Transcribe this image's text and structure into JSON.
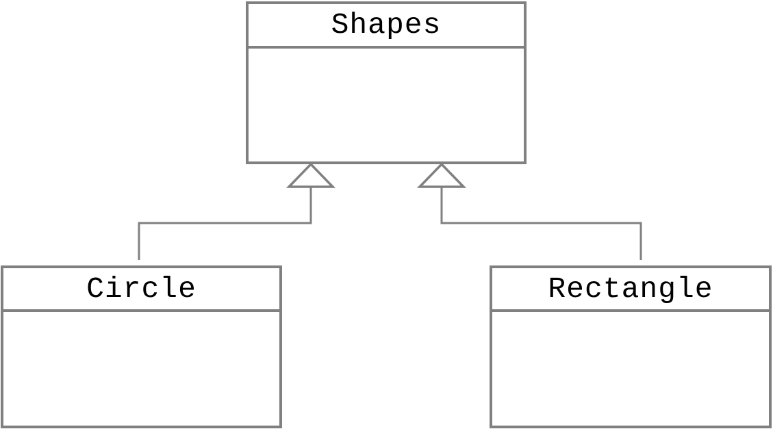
{
  "diagram": {
    "colors": {
      "stroke": "#808080",
      "text": "#000000",
      "background": "#ffffff"
    },
    "classes": {
      "parent": {
        "name": "Shapes"
      },
      "left_child": {
        "name": "Circle"
      },
      "right_child": {
        "name": "Rectangle"
      }
    },
    "relationships": [
      {
        "type": "inheritance",
        "from": "Circle",
        "to": "Shapes"
      },
      {
        "type": "inheritance",
        "from": "Rectangle",
        "to": "Shapes"
      }
    ]
  }
}
